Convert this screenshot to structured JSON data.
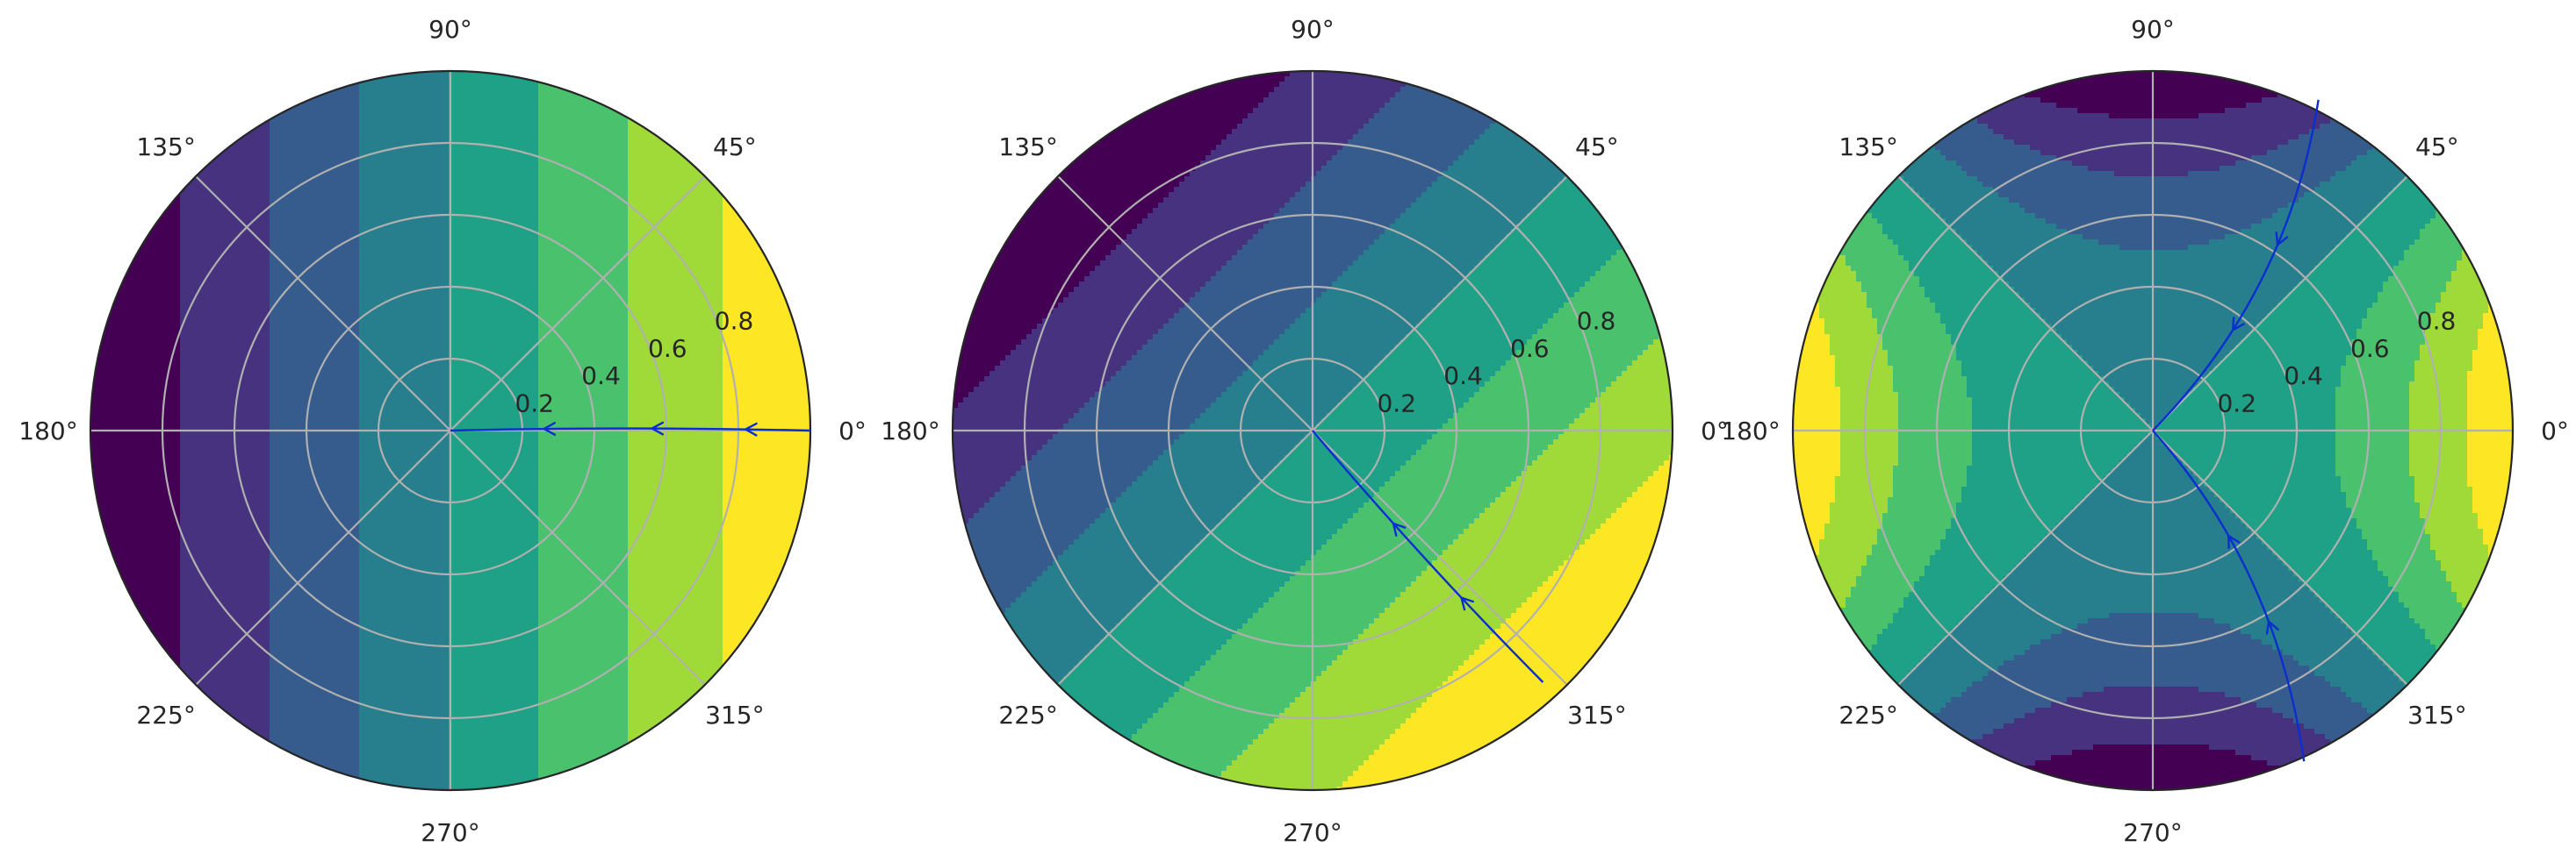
{
  "chart_data": [
    {
      "type": "polar_contourf",
      "field": "x",
      "title": "",
      "theta_ticks_deg": [
        0,
        45,
        90,
        135,
        180,
        225,
        270,
        315
      ],
      "theta_tick_labels": [
        "0°",
        "45°",
        "90°",
        "135°",
        "180°",
        "225°",
        "270°",
        "315°"
      ],
      "r_ticks": [
        0.2,
        0.4,
        0.6,
        0.8
      ],
      "r_tick_labels": [
        "0.2",
        "0.4",
        "0.6",
        "0.8"
      ],
      "rlim": [
        0,
        1
      ],
      "levels": 8,
      "colormap": [
        "#440154",
        "#46327e",
        "#365c8d",
        "#277f8e",
        "#1fa187",
        "#4ac16d",
        "#a0da39",
        "#fde725"
      ],
      "grid": true,
      "streamline": {
        "direction_deg": 180,
        "start": [
          1.0,
          0.0
        ],
        "end": [
          0.0,
          0.0
        ],
        "arrow_at_r": [
          0.82,
          0.56,
          0.26
        ]
      }
    },
    {
      "type": "polar_contourf",
      "field": "x*cos(45°) - y*sin(45°)",
      "title": "",
      "theta_ticks_deg": [
        0,
        45,
        90,
        135,
        180,
        225,
        270,
        315
      ],
      "theta_tick_labels": [
        "0°",
        "45°",
        "90°",
        "135°",
        "180°",
        "225°",
        "270°",
        "315°"
      ],
      "r_ticks": [
        0.2,
        0.4,
        0.6,
        0.8
      ],
      "r_tick_labels": [
        "0.2",
        "0.4",
        "0.6",
        "0.8"
      ],
      "rlim": [
        0,
        1
      ],
      "levels": 8,
      "colormap": [
        "#440154",
        "#46327e",
        "#365c8d",
        "#277f8e",
        "#1fa187",
        "#4ac16d",
        "#a0da39",
        "#fde725"
      ],
      "grid": true,
      "streamline": {
        "direction_deg": 135,
        "start": [
          0.64,
          -0.7
        ],
        "end": [
          0.0,
          0.0
        ],
        "arrow_at_r": [
          0.62,
          0.34
        ]
      }
    },
    {
      "type": "polar_contourf",
      "field": "x^2 - y^2",
      "title": "",
      "theta_ticks_deg": [
        0,
        45,
        90,
        135,
        180,
        225,
        270,
        315
      ],
      "theta_tick_labels": [
        "0°",
        "45°",
        "90°",
        "135°",
        "180°",
        "225°",
        "270°",
        "315°"
      ],
      "r_ticks": [
        0.2,
        0.4,
        0.6,
        0.8
      ],
      "r_tick_labels": [
        "0.2",
        "0.4",
        "0.6",
        "0.8"
      ],
      "rlim": [
        0,
        1
      ],
      "levels": 8,
      "colormap": [
        "#440154",
        "#46327e",
        "#365c8d",
        "#277f8e",
        "#1fa187",
        "#4ac16d",
        "#a0da39",
        "#fde725"
      ],
      "grid": true,
      "streamlines": [
        {
          "start": [
            0.46,
            0.92
          ],
          "end": [
            0.0,
            0.0
          ],
          "arrow_at_r": [
            0.62,
            0.36
          ]
        },
        {
          "start": [
            0.42,
            -0.92
          ],
          "end": [
            0.0,
            0.0
          ],
          "arrow_at_r": [
            0.62,
            0.36
          ]
        }
      ]
    }
  ]
}
